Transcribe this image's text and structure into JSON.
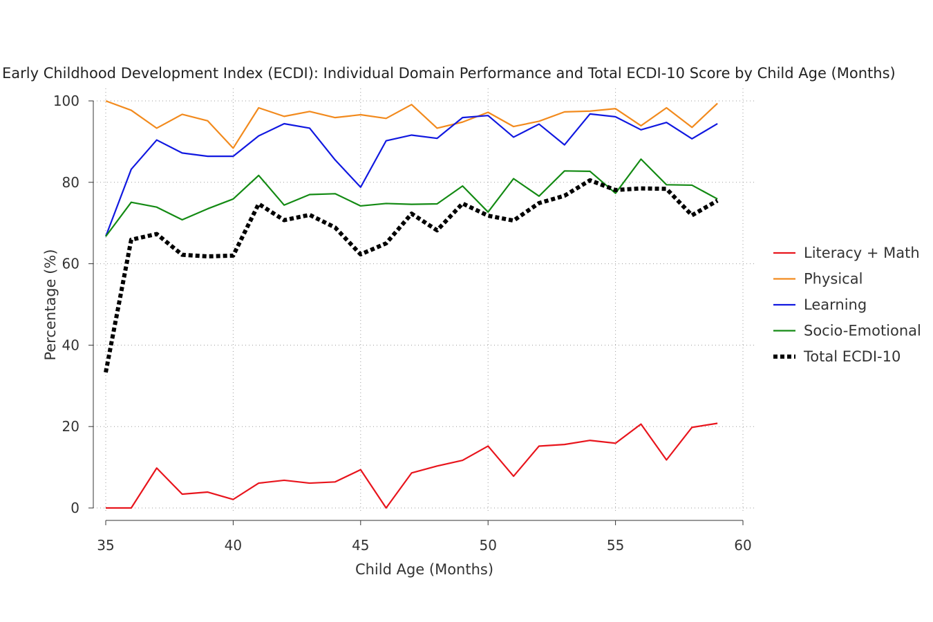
{
  "chart_data": {
    "type": "line",
    "title": "Early Childhood Development Index (ECDI): Individual Domain Performance and Total ECDI-10 Score by Child Age (Months)",
    "xlabel": "Child Age (Months)",
    "ylabel": "Percentage (%)",
    "xlim": [
      35,
      60
    ],
    "ylim": [
      0,
      100
    ],
    "xticks": [
      35,
      40,
      45,
      50,
      55,
      60
    ],
    "yticks": [
      0,
      20,
      40,
      60,
      80,
      100
    ],
    "grid": true,
    "legend_position": "right",
    "x": [
      35,
      36,
      37,
      38,
      39,
      40,
      41,
      42,
      43,
      44,
      45,
      46,
      47,
      48,
      49,
      50,
      51,
      52,
      53,
      54,
      55,
      56,
      57,
      58,
      59
    ],
    "series": [
      {
        "name": "Literacy + Math",
        "color": "#e8141c",
        "style": "solid",
        "values": [
          0,
          0,
          9.8,
          3.4,
          3.9,
          2.1,
          6.1,
          6.8,
          6.1,
          6.4,
          9.4,
          0,
          8.6,
          10.3,
          11.7,
          15.2,
          7.8,
          15.2,
          15.6,
          16.6,
          15.9,
          20.6,
          11.8,
          19.8,
          20.8
        ]
      },
      {
        "name": "Physical",
        "color": "#f28a1d",
        "style": "solid",
        "values": [
          100,
          97.7,
          93.3,
          96.7,
          95.1,
          88.4,
          98.3,
          96.2,
          97.4,
          95.9,
          96.6,
          95.7,
          99.1,
          93.3,
          94.8,
          97.2,
          93.7,
          95,
          97.3,
          97.5,
          98.1,
          93.9,
          98.3,
          93.5,
          99.4
        ]
      },
      {
        "name": "Learning",
        "color": "#1018e0",
        "style": "solid",
        "values": [
          66.7,
          83.2,
          90.4,
          87.2,
          86.4,
          86.4,
          91.4,
          94.4,
          93.3,
          85.5,
          78.8,
          90.2,
          91.6,
          90.8,
          95.9,
          96.4,
          91.1,
          94.3,
          89.2,
          96.8,
          96.1,
          92.9,
          94.7,
          90.7,
          94.4
        ]
      },
      {
        "name": "Socio-Emotional",
        "color": "#138a13",
        "style": "solid",
        "values": [
          66.7,
          75.1,
          73.9,
          70.8,
          73.5,
          75.9,
          81.7,
          74.4,
          77,
          77.2,
          74.2,
          74.8,
          74.6,
          74.7,
          79.1,
          72.7,
          80.9,
          76.6,
          82.8,
          82.7,
          77.3,
          85.7,
          79.4,
          79.3,
          75.9
        ]
      },
      {
        "name": "Total ECDI-10",
        "color": "#000000",
        "style": "dotted",
        "values": [
          33.3,
          65.9,
          67.3,
          62.2,
          61.8,
          62,
          74.7,
          70.7,
          72,
          68.9,
          62.3,
          65,
          72.3,
          68.2,
          74.8,
          71.8,
          70.6,
          74.9,
          76.7,
          80.5,
          78.1,
          78.5,
          78.4,
          71.9,
          75.5
        ]
      }
    ]
  }
}
